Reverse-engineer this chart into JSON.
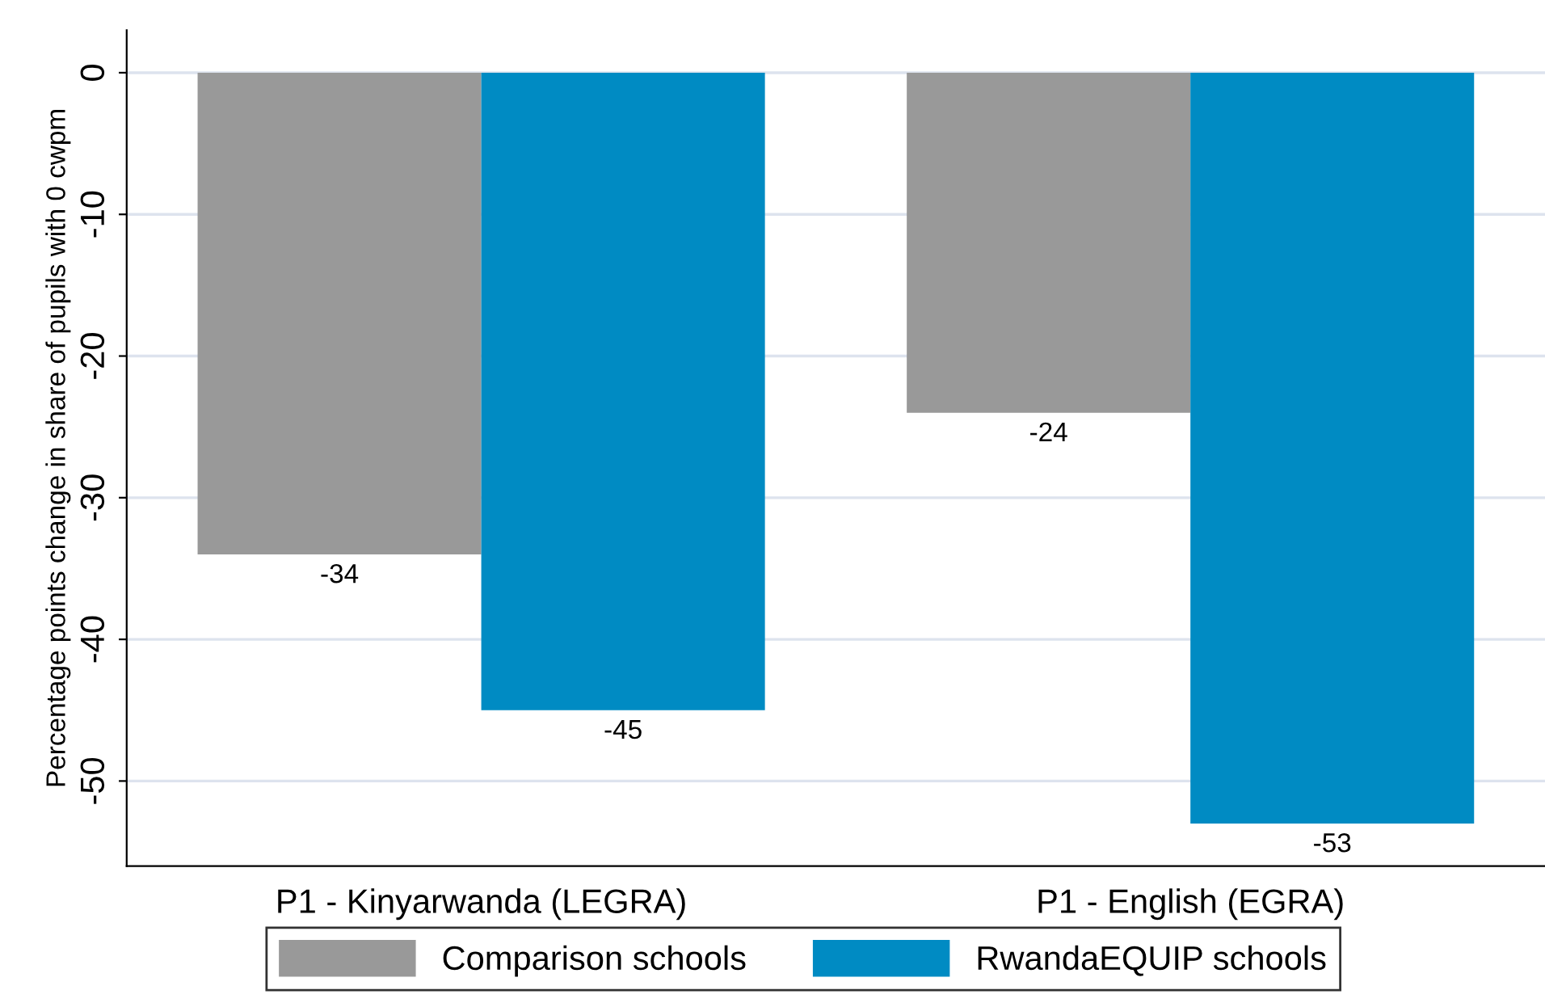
{
  "chart_data": {
    "type": "bar",
    "ylabel": "Percentage points change in share of pupils with 0 cwpm",
    "categories": [
      "P1 - Kinyarwanda (LEGRA)",
      "P1 - English (EGRA)"
    ],
    "series": [
      {
        "name": "Comparison schools",
        "color": "#999999",
        "values": [
          -34,
          -24
        ]
      },
      {
        "name": "RwandaEQUIP schools",
        "color": "#008bc3",
        "values": [
          -45,
          -53
        ]
      }
    ],
    "ylim": [
      -56,
      3
    ],
    "yticks": [
      0,
      -10,
      -20,
      -30,
      -40,
      -50
    ],
    "grid": "y",
    "legend": "bottom",
    "data_labels": true
  }
}
